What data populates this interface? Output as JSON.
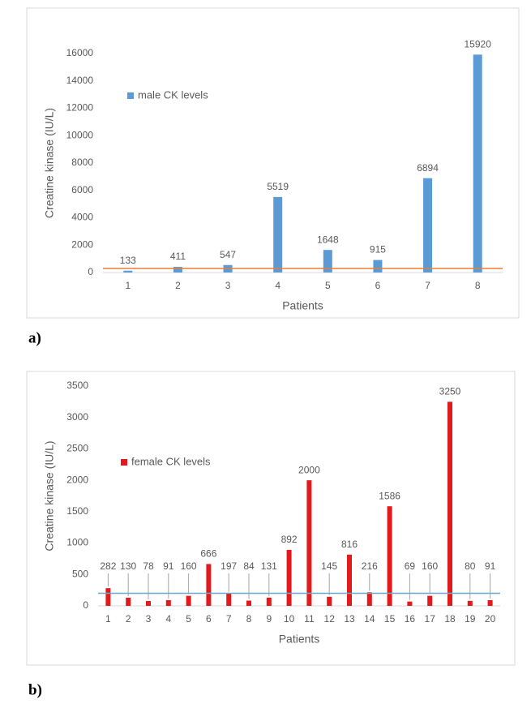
{
  "chart_data": [
    {
      "type": "bar",
      "panel": "a)",
      "y_label": "Creatine kinase (IU/L)",
      "x_label": "Patients",
      "categories": [
        "1",
        "2",
        "3",
        "4",
        "5",
        "6",
        "7",
        "8"
      ],
      "series": [
        {
          "name": "male CK levels",
          "color": "#5b9bd5",
          "values": [
            133,
            411,
            547,
            5519,
            1648,
            915,
            6894,
            15920
          ]
        }
      ],
      "reference": {
        "value": 300,
        "color": "#ed7d31"
      },
      "ylim": [
        0,
        16000
      ],
      "yticks": [
        0,
        2000,
        4000,
        6000,
        8000,
        10000,
        12000,
        14000,
        16000
      ]
    },
    {
      "type": "bar",
      "panel": "b)",
      "y_label": "Creatine kinase (IU/L)",
      "x_label": "Patients",
      "categories": [
        "1",
        "2",
        "3",
        "4",
        "5",
        "6",
        "7",
        "8",
        "9",
        "10",
        "11",
        "12",
        "13",
        "14",
        "15",
        "16",
        "17",
        "18",
        "19",
        "20"
      ],
      "series": [
        {
          "name": "female CK levels",
          "color": "#e31a1c",
          "values": [
            282,
            130,
            78,
            91,
            160,
            666,
            197,
            84,
            131,
            892,
            2000,
            145,
            816,
            216,
            1586,
            69,
            160,
            3250,
            80,
            91
          ]
        }
      ],
      "reference": {
        "value": 200,
        "color": "#6fa8c4"
      },
      "ylim": [
        0,
        3500
      ],
      "yticks": [
        0,
        500,
        1000,
        1500,
        2000,
        2500,
        3000,
        3500
      ]
    }
  ]
}
